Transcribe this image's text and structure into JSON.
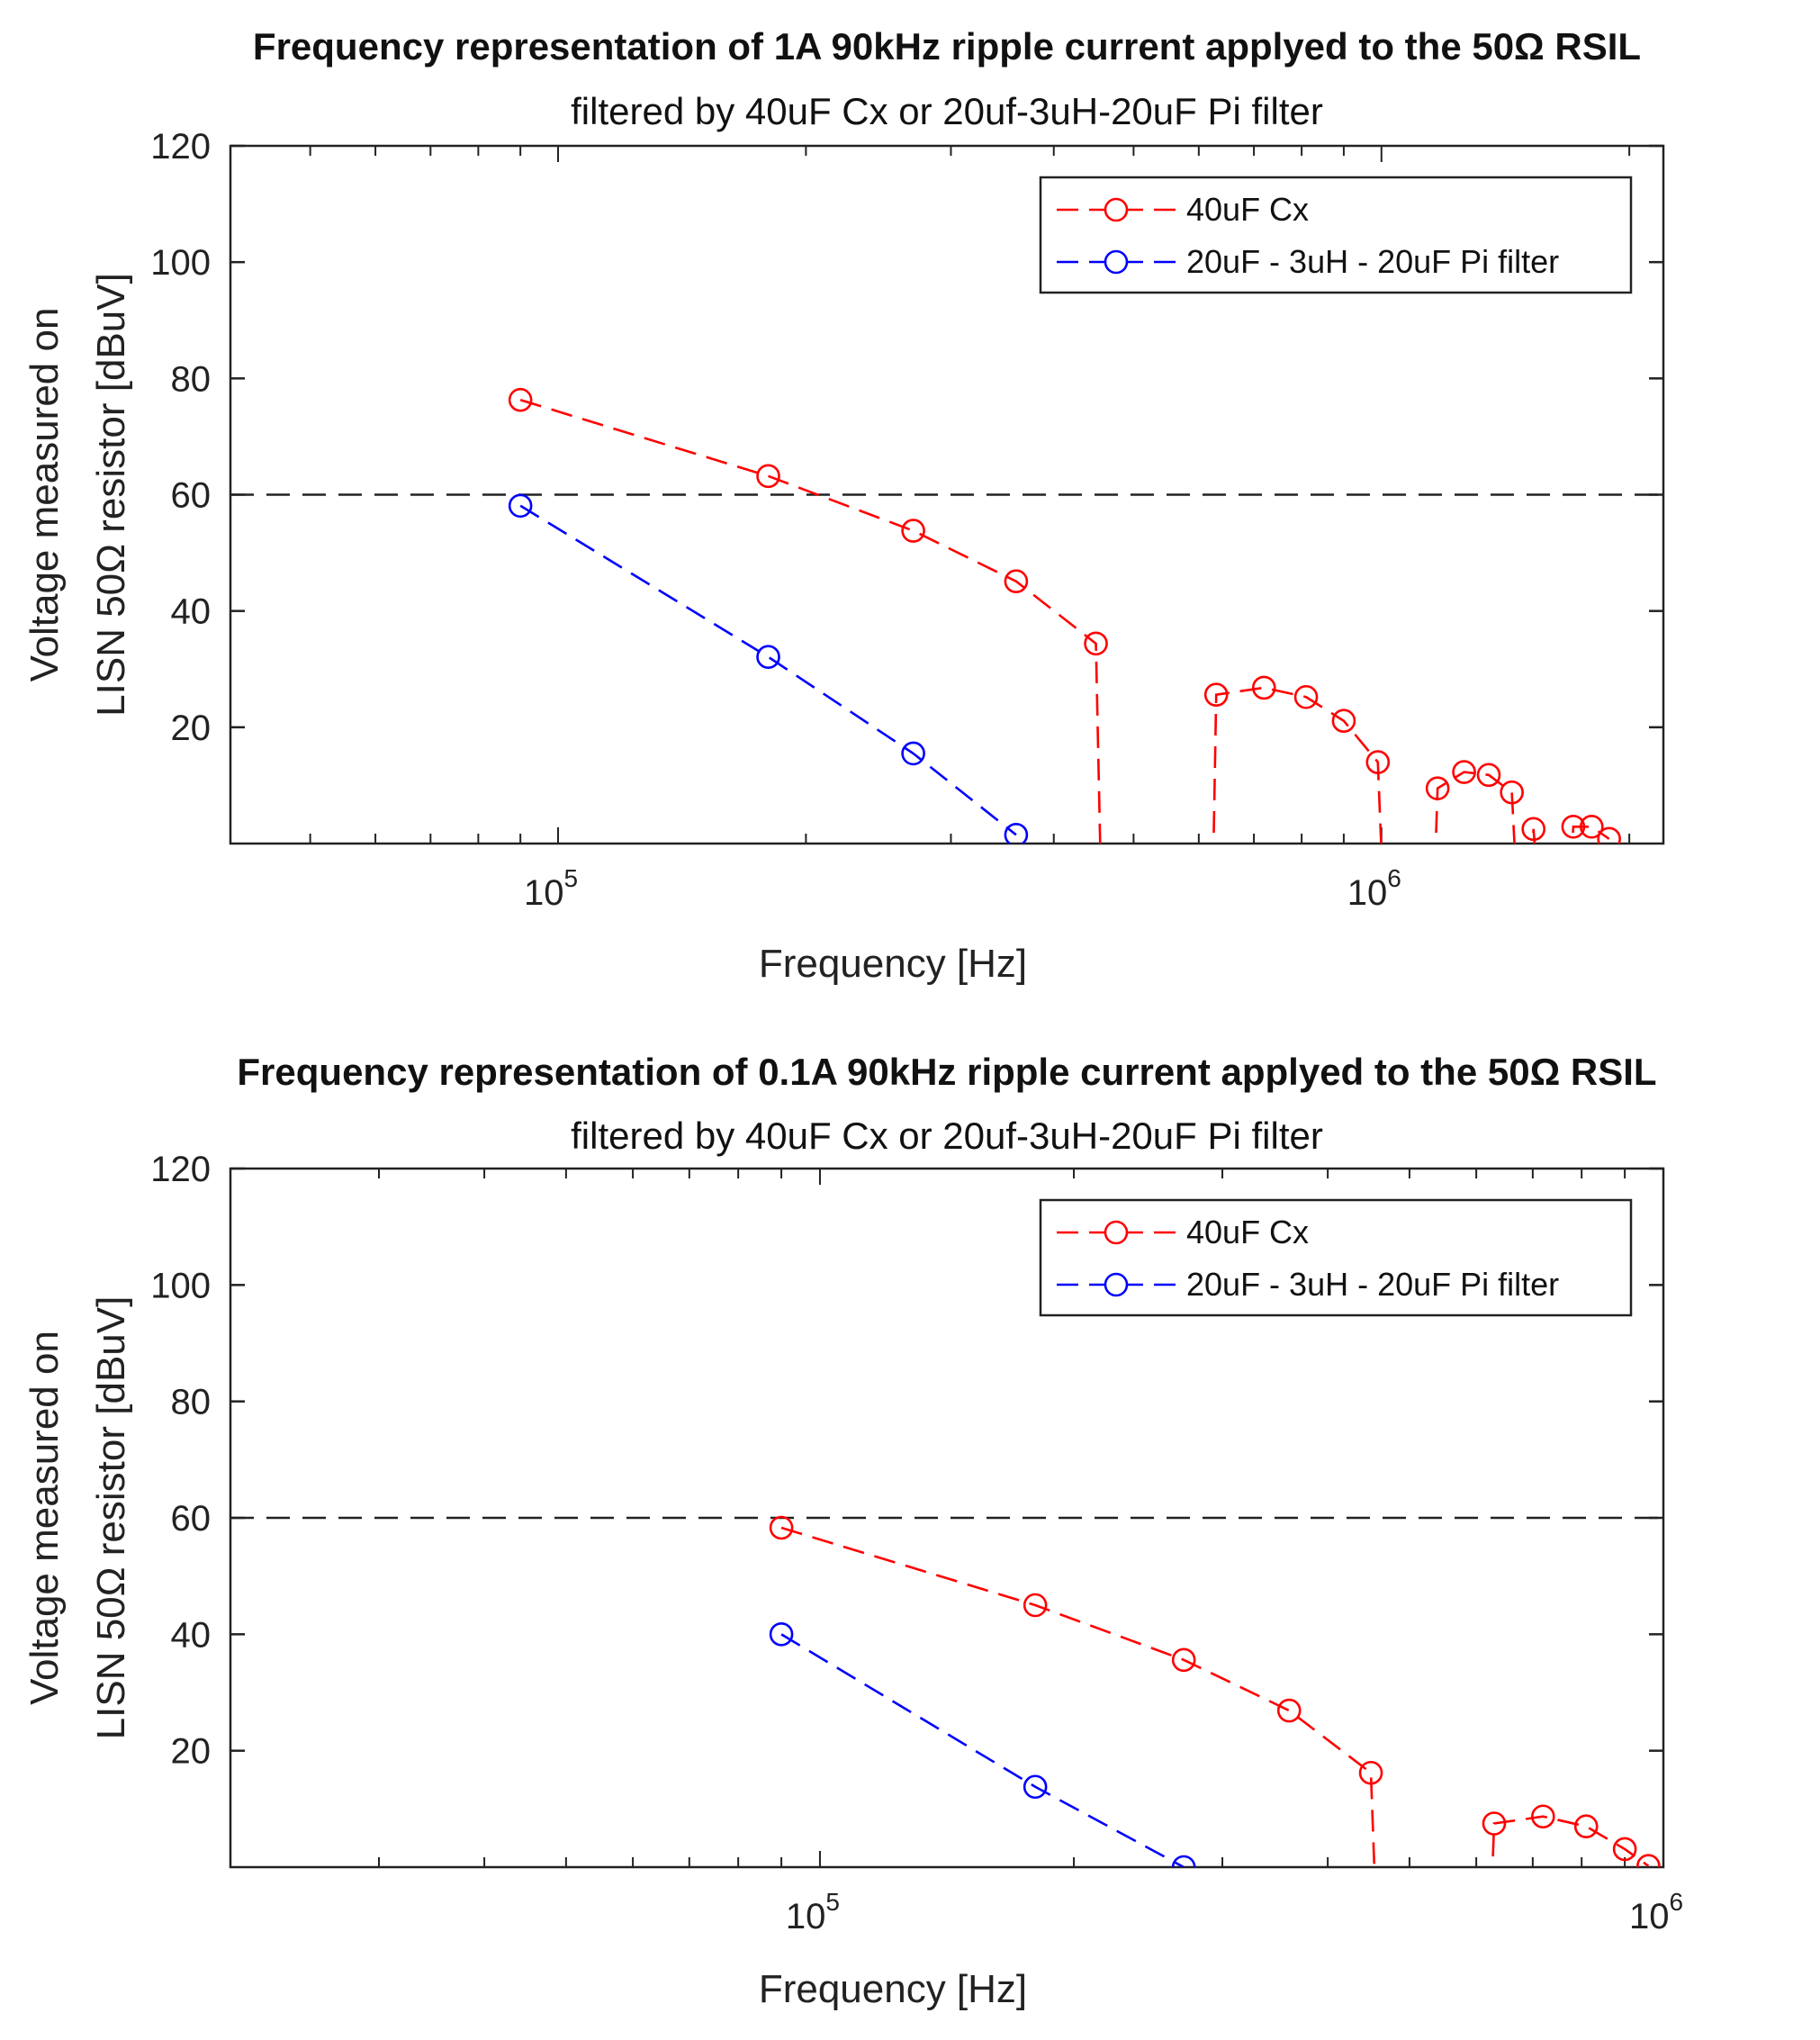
{
  "chart_data": [
    {
      "type": "line",
      "title": "Frequency representation of 1A 90kHz ripple current applyed to the 50Ω RSIL",
      "subtitle": "filtered by 40uF Cx or 20uf-3uH-20uF Pi filter",
      "xlabel": "Frequency [Hz]",
      "ylabel_line1": "Voltage measured on",
      "ylabel_line2": "LISN 50Ω resistor [dBuV]",
      "xscale": "log",
      "xlim": [
        40000,
        2200000
      ],
      "ylim": [
        0,
        120
      ],
      "yticks": [
        20,
        40,
        60,
        80,
        100,
        120
      ],
      "xticks": [
        {
          "value": 100000,
          "base": "10",
          "exp": "5"
        },
        {
          "value": 1000000,
          "base": "10",
          "exp": "6"
        }
      ],
      "limit_line": 60,
      "legend_position": "top-right",
      "series": [
        {
          "name": "40uF Cx",
          "color": "#ff0000",
          "points": [
            [
              90000,
              76.3
            ],
            [
              180000,
              63.2
            ],
            [
              270000,
              53.8
            ],
            [
              360000,
              45.1
            ],
            [
              450000,
              34.4
            ],
            [
              630000,
              25.6
            ],
            [
              720000,
              26.8
            ],
            [
              810000,
              25.2
            ],
            [
              900000,
              21.1
            ],
            [
              990000,
              14.0
            ],
            [
              1170000,
              9.5
            ],
            [
              1260000,
              12.3
            ],
            [
              1350000,
              11.8
            ],
            [
              1440000,
              8.8
            ],
            [
              1530000,
              2.5
            ],
            [
              1710000,
              2.9
            ],
            [
              1800000,
              2.9
            ],
            [
              1890000,
              0.8
            ]
          ],
          "drop_after": [
            4,
            9,
            13,
            14
          ]
        },
        {
          "name": "20uF - 3uH - 20uF Pi filter",
          "color": "#0000ff",
          "points": [
            [
              90000,
              58.1
            ],
            [
              180000,
              32.1
            ],
            [
              270000,
              15.5
            ],
            [
              360000,
              1.5
            ]
          ],
          "drop_after": []
        }
      ]
    },
    {
      "type": "line",
      "title": "Frequency representation of 0.1A 90kHz ripple current applyed to the 50Ω RSIL",
      "subtitle": "filtered by 40uF Cx or 20uf-3uH-20uF Pi filter",
      "xlabel": "Frequency [Hz]",
      "ylabel_line1": "Voltage measured on",
      "ylabel_line2": "LISN 50Ω resistor [dBuV]",
      "xscale": "log",
      "xlim": [
        20000,
        1000000
      ],
      "ylim": [
        0,
        120
      ],
      "yticks": [
        20,
        40,
        60,
        80,
        100,
        120
      ],
      "xticks": [
        {
          "value": 100000,
          "base": "10",
          "exp": "5"
        },
        {
          "value": 1000000,
          "base": "10",
          "exp": "6"
        }
      ],
      "limit_line": 60,
      "legend_position": "top-right",
      "series": [
        {
          "name": "40uF Cx",
          "color": "#ff0000",
          "points": [
            [
              90000,
              58.3
            ],
            [
              180000,
              45.0
            ],
            [
              270000,
              35.6
            ],
            [
              360000,
              26.9
            ],
            [
              450000,
              16.2
            ],
            [
              630000,
              7.5
            ],
            [
              720000,
              8.7
            ],
            [
              810000,
              7.0
            ],
            [
              900000,
              3.1
            ],
            [
              960000,
              0.2
            ]
          ],
          "drop_after": [
            4
          ]
        },
        {
          "name": "20uF - 3uH - 20uF Pi filter",
          "color": "#0000ff",
          "points": [
            [
              90000,
              40.0
            ],
            [
              180000,
              13.8
            ],
            [
              270000,
              0.0
            ]
          ],
          "drop_after": []
        }
      ]
    }
  ]
}
